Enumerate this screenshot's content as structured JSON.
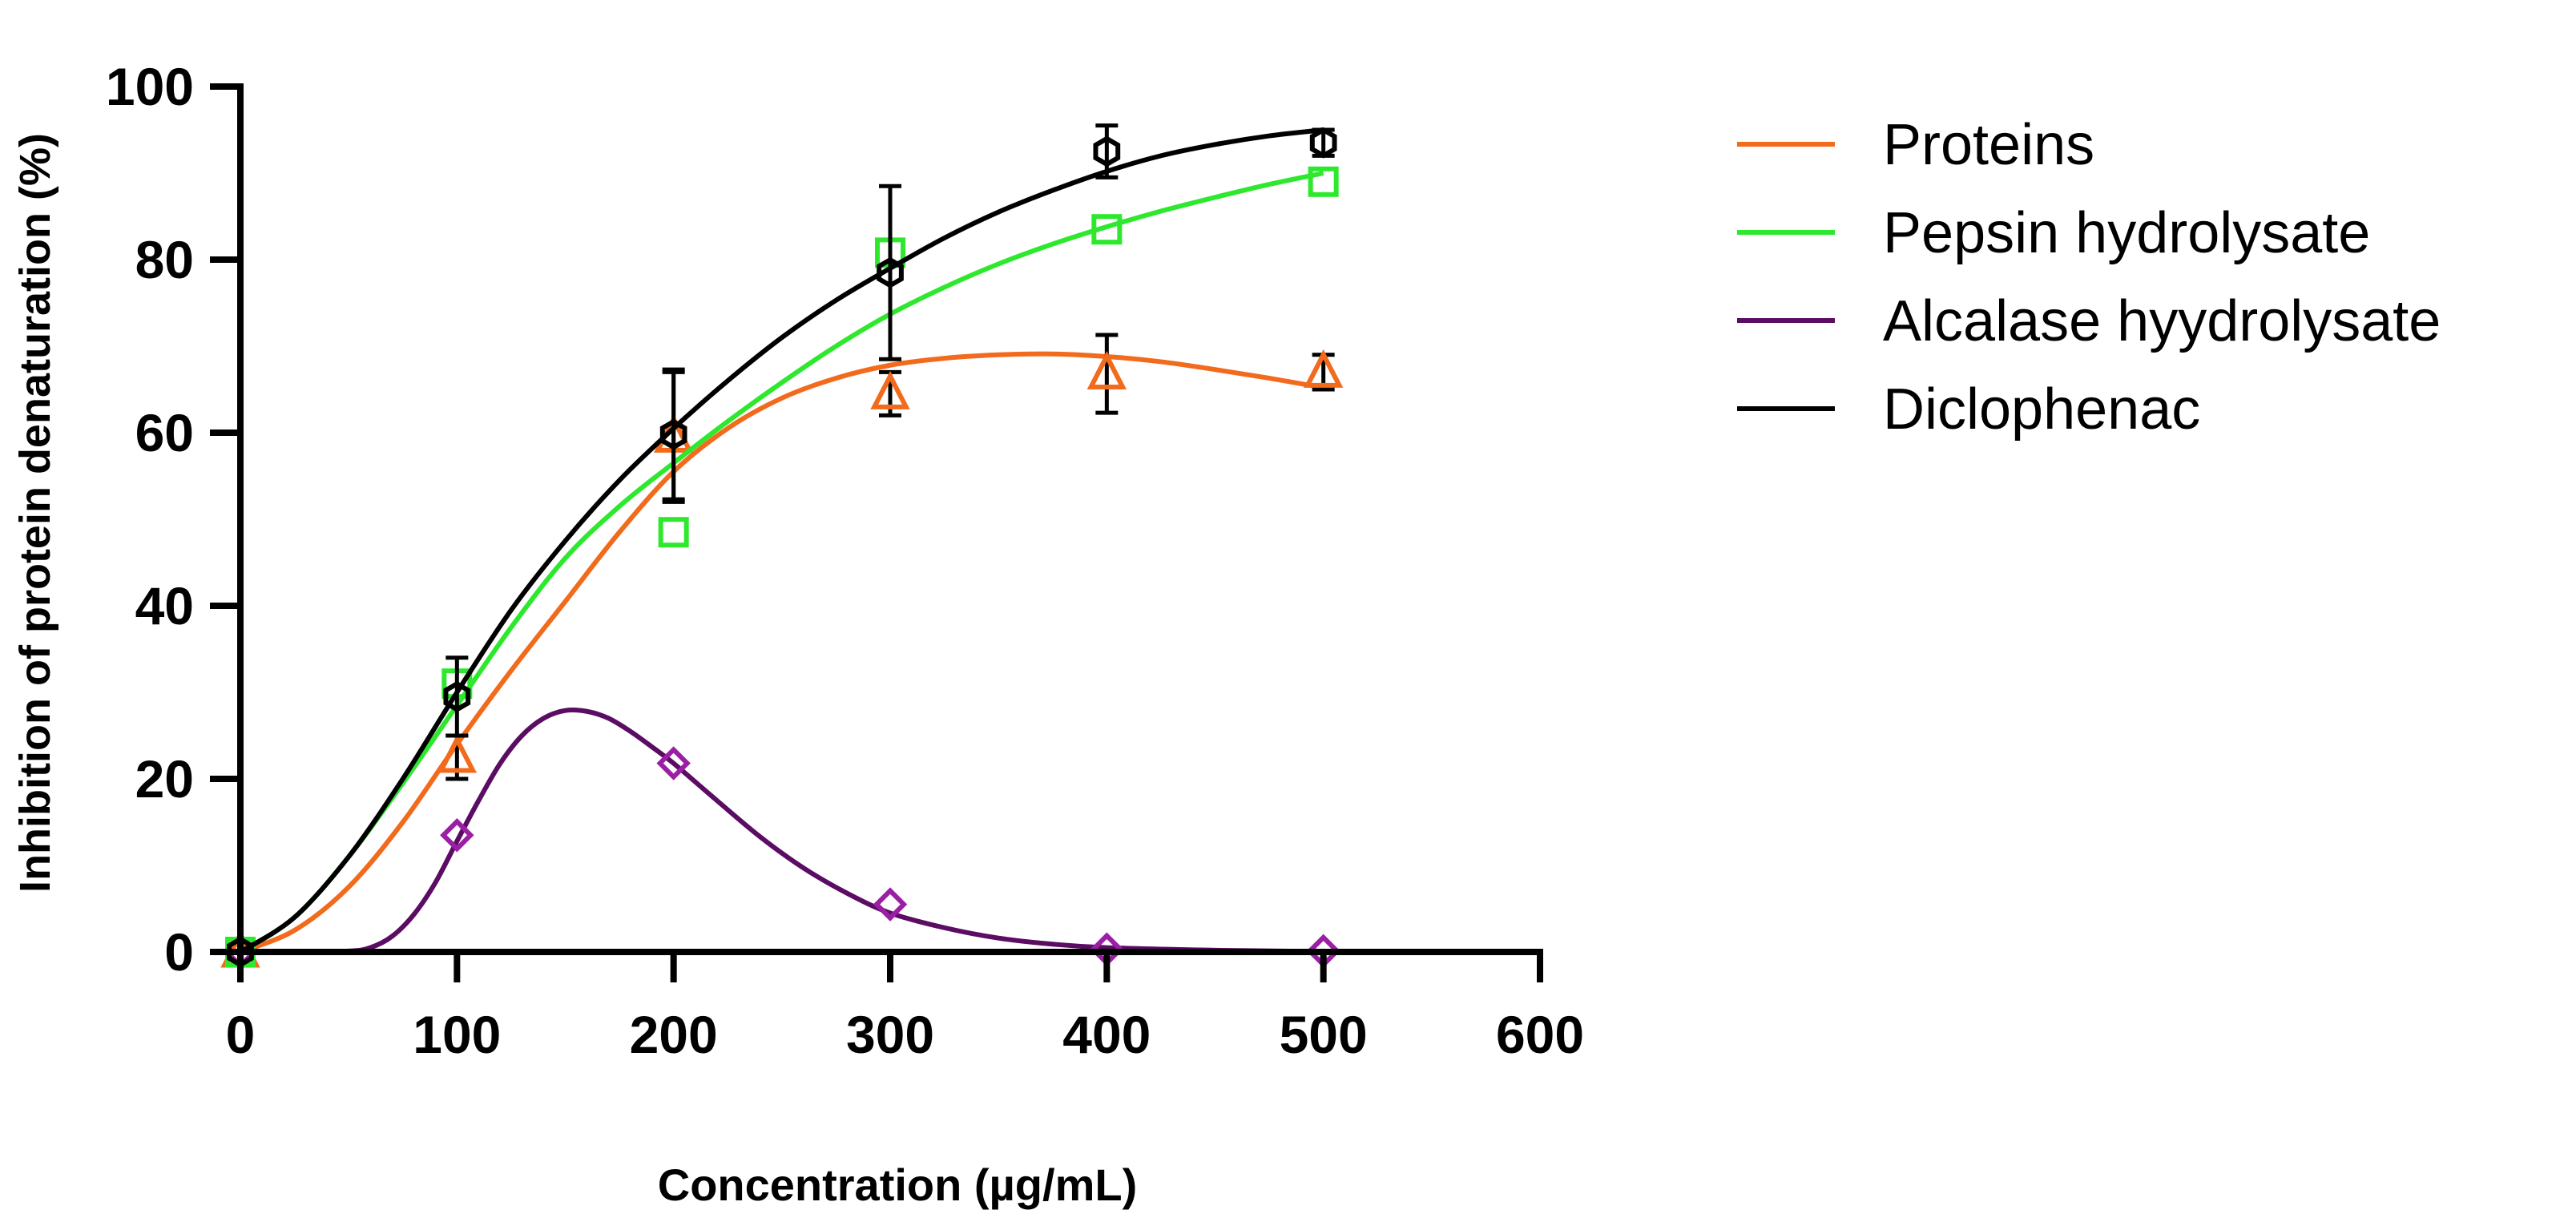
{
  "chart_data": {
    "type": "scatter",
    "title": "",
    "xlabel": "Concentration (µg/mL)",
    "ylabel": "Inhibition of protein denaturation (%)",
    "xlim": [
      0,
      600
    ],
    "ylim": [
      0,
      100
    ],
    "xticks": [
      "0",
      "100",
      "200",
      "300",
      "400",
      "500",
      "600"
    ],
    "yticks": [
      "0",
      "20",
      "40",
      "60",
      "80",
      "100"
    ],
    "legend_position": "top-right, outside plot",
    "grid": false,
    "series": [
      {
        "name": "Proteins",
        "color": "#F26B1D",
        "marker": "triangle",
        "x": [
          0,
          100,
          200,
          300,
          400,
          500
        ],
        "y": [
          0,
          22.5,
          59.5,
          64.5,
          66.8,
          67
        ],
        "err": [
          0,
          2.5,
          7.5,
          2.5,
          4.5,
          2
        ],
        "fit_x": [
          0,
          25,
          50,
          75,
          100,
          125,
          150,
          175,
          200,
          225,
          250,
          275,
          300,
          325,
          350,
          375,
          400,
          425,
          450,
          475,
          500
        ],
        "fit_y": [
          0,
          2.5,
          7.5,
          15,
          24,
          32.5,
          40.5,
          48.5,
          55.5,
          60.5,
          64,
          66.3,
          67.8,
          68.6,
          69,
          69.1,
          68.8,
          68.2,
          67.3,
          66.3,
          65.2
        ]
      },
      {
        "name": "Pepsin hydrolysate",
        "color": "#2EE82E",
        "marker": "square",
        "x": [
          0,
          100,
          200,
          300,
          400,
          500
        ],
        "y": [
          0,
          31,
          48.5,
          80.8,
          83.5,
          89
        ],
        "err": [
          0,
          0,
          0,
          0,
          0,
          0
        ],
        "fit_x": [
          0,
          25,
          50,
          75,
          100,
          125,
          150,
          175,
          200,
          225,
          250,
          275,
          300,
          325,
          350,
          375,
          400,
          425,
          450,
          475,
          500
        ],
        "fit_y": [
          0,
          4,
          11,
          19.5,
          28.5,
          37.5,
          45.5,
          51.5,
          56.5,
          61.3,
          65.8,
          70,
          73.7,
          76.8,
          79.5,
          81.8,
          83.8,
          85.6,
          87.2,
          88.7,
          90
        ]
      },
      {
        "name": "Alcalase hyydrolysate",
        "color": "#5B0C63",
        "marker_color": "#9B1FA5",
        "marker": "diamond",
        "x": [
          0,
          100,
          200,
          300,
          400,
          500
        ],
        "y": [
          0,
          13.5,
          21.8,
          5.5,
          0.3,
          0.1
        ],
        "err": [
          0,
          0,
          0,
          0,
          0,
          0
        ],
        "fit_x": [
          0,
          25,
          50,
          60,
          70,
          80,
          90,
          100,
          110,
          120,
          130,
          140,
          150,
          160,
          170,
          180,
          190,
          200,
          220,
          240,
          260,
          280,
          300,
          325,
          350,
          375,
          400,
          450,
          500
        ],
        "fit_y": [
          0,
          0,
          0.1,
          0.5,
          1.8,
          4.3,
          8,
          12.8,
          17.5,
          21.8,
          25,
          27,
          27.9,
          27.8,
          27,
          25.5,
          23.7,
          21.8,
          17.5,
          13.3,
          9.7,
          6.8,
          4.5,
          2.8,
          1.6,
          0.9,
          0.5,
          0.2,
          0.05
        ]
      },
      {
        "name": "Diclophenac",
        "color": "#000000",
        "marker": "hexagon",
        "x": [
          0,
          100,
          200,
          300,
          400,
          500
        ],
        "y": [
          0,
          29.5,
          59.8,
          78.5,
          92.5,
          93.5
        ],
        "err": [
          0,
          4.5,
          7.5,
          10,
          3,
          1.5
        ],
        "fit_x": [
          0,
          25,
          50,
          75,
          100,
          125,
          150,
          175,
          200,
          225,
          250,
          275,
          300,
          325,
          350,
          375,
          400,
          425,
          450,
          475,
          500
        ],
        "fit_y": [
          0,
          4,
          11,
          20,
          30,
          39.5,
          47.5,
          54.5,
          60.5,
          66,
          71,
          75.3,
          79,
          82.5,
          85.5,
          88,
          90.2,
          92,
          93.3,
          94.3,
          95
        ]
      }
    ]
  }
}
